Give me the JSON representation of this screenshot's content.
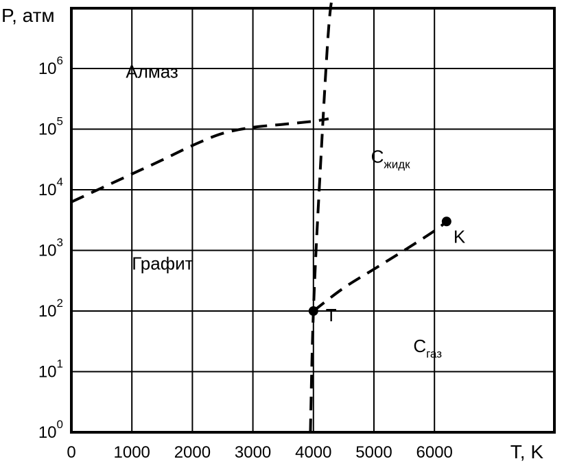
{
  "chart_data": {
    "type": "line",
    "title": "",
    "xlabel": "T, K",
    "ylabel": "P, атм",
    "x_scale": "linear",
    "y_scale": "log",
    "xlim": [
      0,
      7000
    ],
    "ylim": [
      1,
      10000000
    ],
    "grid": true,
    "x_ticks": [
      {
        "value": 0,
        "label": "0"
      },
      {
        "value": 1000,
        "label": "1000"
      },
      {
        "value": 2000,
        "label": "2000"
      },
      {
        "value": 3000,
        "label": "3000"
      },
      {
        "value": 4000,
        "label": "4000"
      },
      {
        "value": 5000,
        "label": "5000"
      },
      {
        "value": 6000,
        "label": "6000"
      }
    ],
    "y_ticks": [
      {
        "value": 1,
        "base": "10",
        "exp": "0"
      },
      {
        "value": 10,
        "base": "10",
        "exp": "1"
      },
      {
        "value": 100,
        "base": "10",
        "exp": "2"
      },
      {
        "value": 1000,
        "base": "10",
        "exp": "3"
      },
      {
        "value": 10000,
        "base": "10",
        "exp": "4"
      },
      {
        "value": 100000,
        "base": "10",
        "exp": "5"
      },
      {
        "value": 1000000,
        "base": "10",
        "exp": "6"
      }
    ],
    "series": [
      {
        "style": "dashed",
        "x": [
          0,
          500,
          1000,
          1500,
          2000,
          2500,
          3000,
          3500,
          4000,
          4250
        ],
        "y": [
          6300,
          10700,
          18200,
          30900,
          53700,
          85100,
          107000,
          120000,
          135000,
          148000
        ]
      },
      {
        "style": "dashed",
        "x": [
          3950,
          4000,
          4100,
          4250,
          4350
        ],
        "y": [
          1,
          100,
          12000,
          4500000,
          23000000
        ]
      },
      {
        "style": "dashed",
        "x": [
          4000,
          4500,
          5000,
          5500,
          6000,
          6200
        ],
        "y": [
          100,
          240,
          490,
          1000,
          2100,
          3000
        ]
      }
    ],
    "points": [
      {
        "name": "T",
        "x": 4000,
        "y": 100
      },
      {
        "name": "K",
        "x": 6200,
        "y": 3000
      }
    ],
    "annotations": [
      {
        "text": "Алмаз",
        "x": 900,
        "y": 700000
      },
      {
        "text": "Графит",
        "x": 1000,
        "y": 480
      },
      {
        "text": "С",
        "sub": "жидк",
        "x": 4950,
        "y": 28000
      },
      {
        "text": "С",
        "sub": "газ",
        "x": 5650,
        "y": 21
      }
    ]
  }
}
